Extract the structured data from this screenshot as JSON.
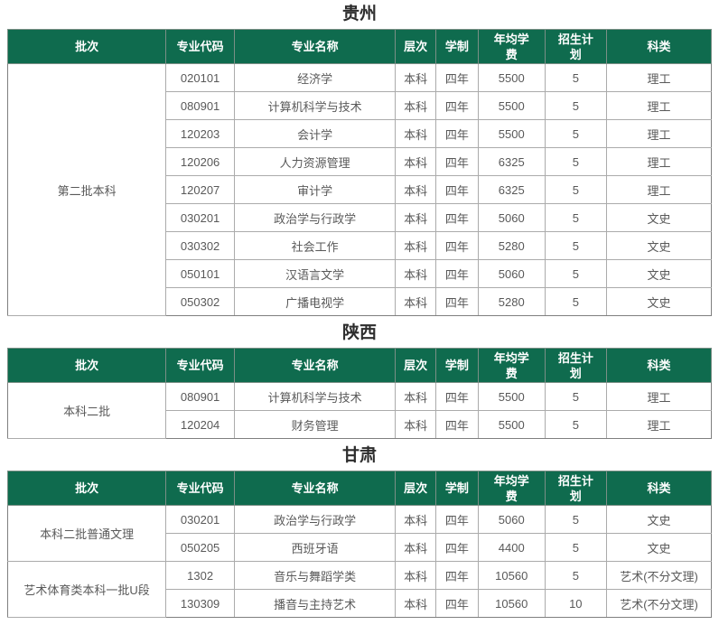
{
  "colors": {
    "header_bg": "#0f6b4e",
    "header_text": "#ffffff",
    "body_text": "#595959",
    "title_text": "#2d2d2d",
    "border_outer": "#7f7f7f",
    "border_inner": "#ababab"
  },
  "table_columns": [
    {
      "key": "batch",
      "label": "批次"
    },
    {
      "key": "code",
      "label": "专业代码"
    },
    {
      "key": "major",
      "label": "专业名称"
    },
    {
      "key": "level",
      "label": "层次"
    },
    {
      "key": "duration",
      "label": "学制"
    },
    {
      "key": "tuition",
      "label": "年均学费"
    },
    {
      "key": "plan",
      "label": "招生计划"
    },
    {
      "key": "category",
      "label": "科类"
    }
  ],
  "sections": [
    {
      "title": "贵州",
      "groups": [
        {
          "batch": "第二批本科",
          "rows": [
            {
              "code": "020101",
              "major": "经济学",
              "level": "本科",
              "duration": "四年",
              "tuition": "5500",
              "plan": "5",
              "category": "理工"
            },
            {
              "code": "080901",
              "major": "计算机科学与技术",
              "level": "本科",
              "duration": "四年",
              "tuition": "5500",
              "plan": "5",
              "category": "理工"
            },
            {
              "code": "120203",
              "major": "会计学",
              "level": "本科",
              "duration": "四年",
              "tuition": "5500",
              "plan": "5",
              "category": "理工"
            },
            {
              "code": "120206",
              "major": "人力资源管理",
              "level": "本科",
              "duration": "四年",
              "tuition": "6325",
              "plan": "5",
              "category": "理工"
            },
            {
              "code": "120207",
              "major": "审计学",
              "level": "本科",
              "duration": "四年",
              "tuition": "6325",
              "plan": "5",
              "category": "理工"
            },
            {
              "code": "030201",
              "major": "政治学与行政学",
              "level": "本科",
              "duration": "四年",
              "tuition": "5060",
              "plan": "5",
              "category": "文史"
            },
            {
              "code": "030302",
              "major": "社会工作",
              "level": "本科",
              "duration": "四年",
              "tuition": "5280",
              "plan": "5",
              "category": "文史"
            },
            {
              "code": "050101",
              "major": "汉语言文学",
              "level": "本科",
              "duration": "四年",
              "tuition": "5060",
              "plan": "5",
              "category": "文史"
            },
            {
              "code": "050302",
              "major": "广播电视学",
              "level": "本科",
              "duration": "四年",
              "tuition": "5280",
              "plan": "5",
              "category": "文史"
            }
          ]
        }
      ]
    },
    {
      "title": "陕西",
      "groups": [
        {
          "batch": "本科二批",
          "rows": [
            {
              "code": "080901",
              "major": "计算机科学与技术",
              "level": "本科",
              "duration": "四年",
              "tuition": "5500",
              "plan": "5",
              "category": "理工"
            },
            {
              "code": "120204",
              "major": "财务管理",
              "level": "本科",
              "duration": "四年",
              "tuition": "5500",
              "plan": "5",
              "category": "理工"
            }
          ]
        }
      ]
    },
    {
      "title": "甘肃",
      "groups": [
        {
          "batch": "本科二批普通文理",
          "rows": [
            {
              "code": "030201",
              "major": "政治学与行政学",
              "level": "本科",
              "duration": "四年",
              "tuition": "5060",
              "plan": "5",
              "category": "文史"
            },
            {
              "code": "050205",
              "major": "西班牙语",
              "level": "本科",
              "duration": "四年",
              "tuition": "4400",
              "plan": "5",
              "category": "文史"
            }
          ]
        },
        {
          "batch": "艺术体育类本科一批U段",
          "rows": [
            {
              "code": "1302",
              "major": "音乐与舞蹈学类",
              "level": "本科",
              "duration": "四年",
              "tuition": "10560",
              "plan": "5",
              "category": "艺术(不分文理)"
            },
            {
              "code": "130309",
              "major": "播音与主持艺术",
              "level": "本科",
              "duration": "四年",
              "tuition": "10560",
              "plan": "10",
              "category": "艺术(不分文理)"
            }
          ]
        }
      ]
    }
  ]
}
